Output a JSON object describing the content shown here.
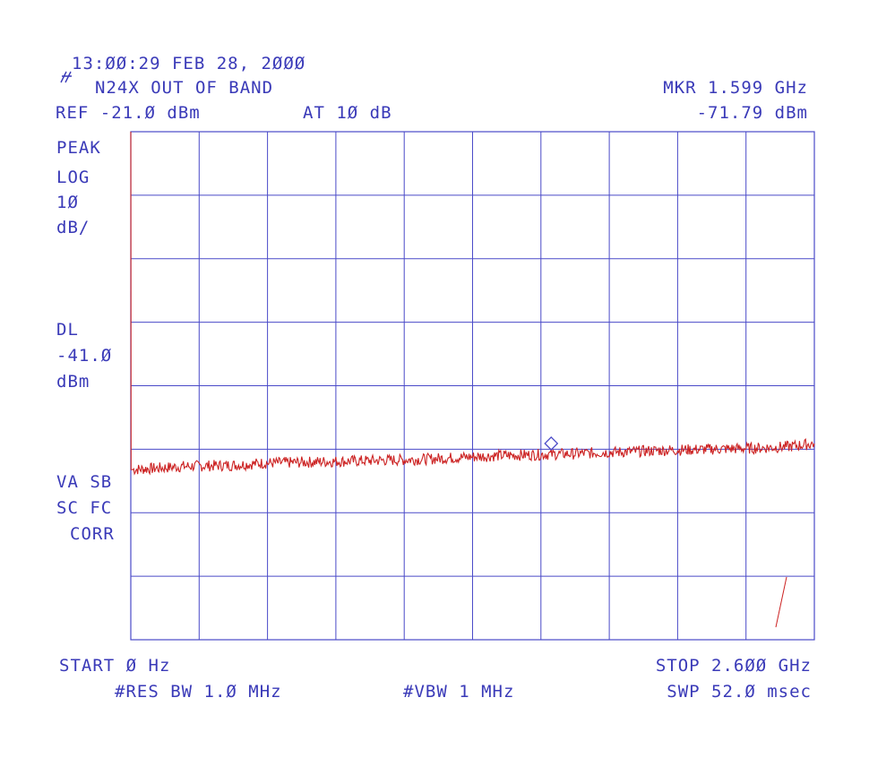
{
  "header": {
    "timestamp": "13:ØØ:29 FEB 28, 2ØØØ",
    "title": "N24X OUT OF BAND",
    "ref_level": "REF -21.Ø dBm",
    "attenuation": "AT 1Ø dB",
    "marker_freq": "MKR 1.599 GHz",
    "marker_level": "-71.79 dBm"
  },
  "left_panel": {
    "detector": "PEAK",
    "scale_type": "LOG",
    "scale_value": "1Ø",
    "scale_unit": "dB/",
    "dl_label": "DL",
    "dl_value": "-41.Ø",
    "dl_unit": "dBm",
    "status_line1": "VA SB",
    "status_line2": "SC FC",
    "status_line3": "CORR"
  },
  "footer": {
    "start": "START Ø Hz",
    "stop": "STOP 2.6ØØ GHz",
    "res_bw": "#RES BW 1.Ø MHz",
    "vbw": "#VBW 1 MHz",
    "sweep": "SWP 52.Ø msec"
  },
  "colors": {
    "grid": "#4a4ac8",
    "text": "#3a3ab8",
    "trace": "#cc2222",
    "marker": "#4a4ac8"
  },
  "chart_data": {
    "type": "line",
    "x_unit": "GHz",
    "y_unit": "dBm",
    "xlim": [
      0,
      2.6
    ],
    "ylim": [
      -101,
      -21
    ],
    "grid": true,
    "divisions": {
      "x": 10,
      "y": 8
    },
    "series": [
      {
        "x": [
          0,
          0.001,
          0.008,
          0.1,
          0.2,
          0.3,
          0.4,
          0.5,
          0.6,
          0.7,
          0.8,
          0.9,
          1.0,
          1.1,
          1.2,
          1.3,
          1.4,
          1.5,
          1.599,
          1.7,
          1.8,
          1.9,
          2.0,
          2.1,
          2.2,
          2.3,
          2.4,
          2.5,
          2.6
        ],
        "y": [
          -21,
          -21,
          -74.2,
          -74.0,
          -73.7,
          -73.6,
          -73.5,
          -73.2,
          -73.1,
          -73.0,
          -72.9,
          -72.8,
          -72.7,
          -72.6,
          -72.4,
          -72.2,
          -72.0,
          -71.9,
          -71.79,
          -71.7,
          -71.5,
          -71.4,
          -71.2,
          -71.1,
          -71.0,
          -70.9,
          -70.8,
          -70.6,
          -70.1
        ]
      }
    ],
    "marker": {
      "x": 1.599,
      "y": -71.79
    }
  }
}
